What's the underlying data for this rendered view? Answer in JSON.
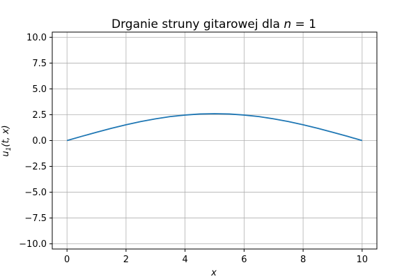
{
  "chart_data": {
    "type": "line",
    "title": "Drganie struny gitarowej dla n = 1",
    "title_text": "Drganie struny gitarowej dla ",
    "title_var": "n",
    "title_rest": " = 1",
    "xlabel": "x",
    "ylabel": "u",
    "ylabel_sub": "1",
    "ylabel_args": "(t, x)",
    "xlim": [
      -0.5,
      10.5
    ],
    "ylim": [
      -10.5,
      10.5
    ],
    "xticks": [
      0,
      2,
      4,
      6,
      8,
      10
    ],
    "xtick_labels": [
      "0",
      "2",
      "4",
      "6",
      "8",
      "10"
    ],
    "yticks": [
      10.0,
      7.5,
      5.0,
      2.5,
      0.0,
      -2.5,
      -5.0,
      -7.5,
      -10.0
    ],
    "ytick_labels": [
      "10.0",
      "7.5",
      "5.0",
      "2.5",
      "0.0",
      "−2.5",
      "−5.0",
      "−7.5",
      "−10.0"
    ],
    "grid": true,
    "series": [
      {
        "color": "#1f77b4",
        "x": [
          0,
          0.5,
          1,
          1.5,
          2,
          2.5,
          3,
          3.5,
          4,
          4.5,
          5,
          5.5,
          6,
          6.5,
          7,
          7.5,
          8,
          8.5,
          9,
          9.5,
          10
        ],
        "y": [
          0.0,
          0.41,
          0.8,
          1.18,
          1.53,
          1.84,
          2.1,
          2.32,
          2.47,
          2.57,
          2.6,
          2.57,
          2.47,
          2.32,
          2.1,
          1.84,
          1.53,
          1.18,
          0.8,
          0.41,
          0.0
        ]
      }
    ]
  }
}
